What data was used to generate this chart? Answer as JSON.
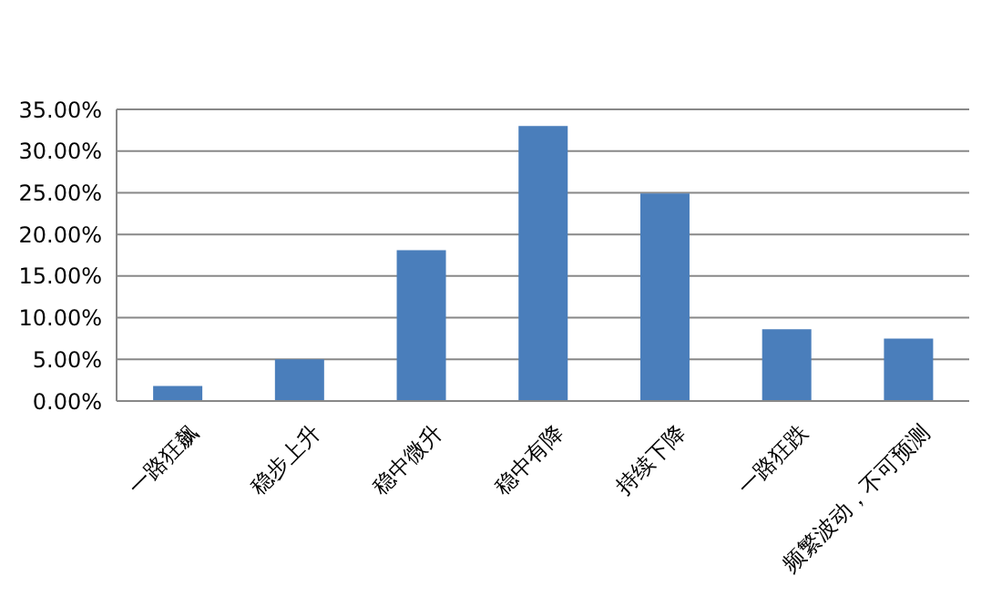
{
  "chart_data": {
    "type": "bar",
    "categories": [
      "一路狂飙",
      "稳步上升",
      "稳中微升",
      "稳中有降",
      "持续下降",
      "一路狂跌",
      "频繁波动，不可预测"
    ],
    "values": [
      1.8,
      5.0,
      18.1,
      33.0,
      24.9,
      8.6,
      7.5
    ],
    "color": "#4a7ebb",
    "ylim": [
      0,
      35
    ],
    "yticks": [
      {
        "value": 0,
        "label": "0.00%"
      },
      {
        "value": 5,
        "label": "5.00%"
      },
      {
        "value": 10,
        "label": "10.00%"
      },
      {
        "value": 15,
        "label": "15.00%"
      },
      {
        "value": 20,
        "label": "20.00%"
      },
      {
        "value": 25,
        "label": "25.00%"
      },
      {
        "value": 30,
        "label": "30.00%"
      },
      {
        "value": 35,
        "label": "35.00%"
      }
    ],
    "grid": "y"
  }
}
